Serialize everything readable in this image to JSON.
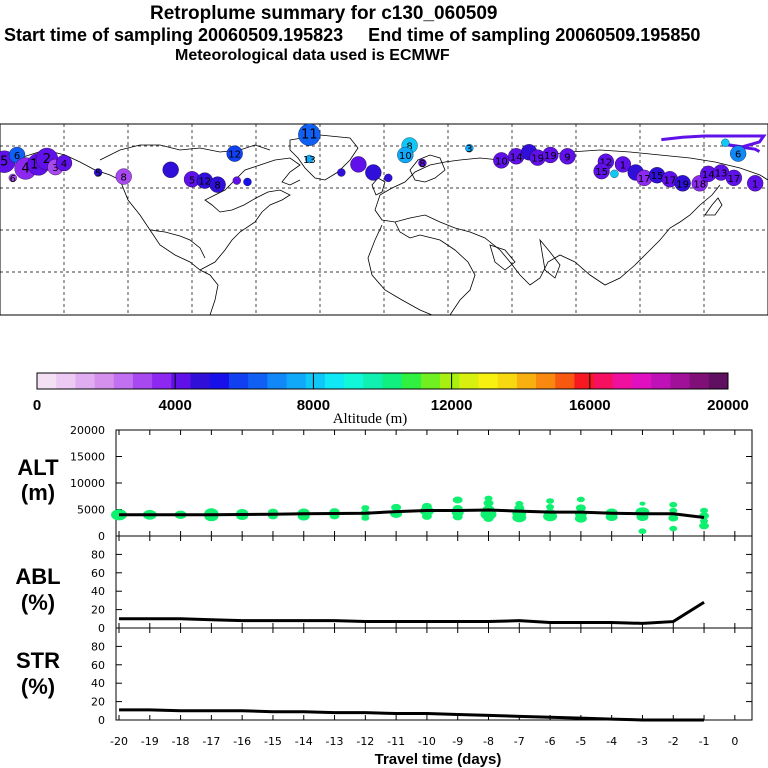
{
  "titles": {
    "line1": "Retroplume summary for c130_060509",
    "line2": "Start time of sampling 20060509.195823     End time of sampling 20060509.195850",
    "line3": "Meteorological data used is ECMWF"
  },
  "colorbar": {
    "colors": [
      "#f4e0f4",
      "#eccaf4",
      "#e0aef0",
      "#d490ec",
      "#c070f0",
      "#a848f0",
      "#8c28f0",
      "#6010e8",
      "#3010d8",
      "#1810e8",
      "#1040f0",
      "#1060f4",
      "#1088f8",
      "#10a8f8",
      "#10c8f8",
      "#10e8f8",
      "#10f8d8",
      "#10f0b0",
      "#10f080",
      "#30f040",
      "#70f020",
      "#a8f010",
      "#d8f010",
      "#f8f010",
      "#f8d810",
      "#f8b010",
      "#f88810",
      "#f85810",
      "#f81820",
      "#f81060",
      "#f010a0",
      "#e010c0",
      "#c010b8",
      "#a01098",
      "#801078",
      "#601060"
    ],
    "tick_labels": [
      "0",
      "4000",
      "8000",
      "12000",
      "16000",
      "20000"
    ],
    "label": "Altitude (m)"
  },
  "map": {
    "markers": [
      {
        "lon": -178,
        "lat": 68,
        "label": "5",
        "color": "#6010e8",
        "size": 3
      },
      {
        "lon": -172,
        "lat": 73,
        "label": "6",
        "color": "#1060f4",
        "size": 2
      },
      {
        "lon": -168,
        "lat": 63,
        "label": "4",
        "color": "#8c28f0",
        "size": 3
      },
      {
        "lon": -162,
        "lat": 66,
        "label": "17",
        "color": "#6010e8",
        "size": 3
      },
      {
        "lon": -158,
        "lat": 70,
        "label": "2",
        "color": "#6010e8",
        "size": 3
      },
      {
        "lon": -154,
        "lat": 64,
        "label": "3",
        "color": "#a848f0",
        "size": 2
      },
      {
        "lon": -150,
        "lat": 67,
        "label": "4",
        "color": "#6010e8",
        "size": 2
      },
      {
        "lon": -174,
        "lat": 56,
        "label": "6",
        "color": "#a848f0",
        "size": 1
      },
      {
        "lon": -134,
        "lat": 60,
        "label": "5",
        "color": "#3010d8",
        "size": 1
      },
      {
        "lon": -122,
        "lat": 57,
        "label": "8",
        "color": "#a848f0",
        "size": 2
      },
      {
        "lon": -100,
        "lat": 62,
        "label": "",
        "color": "#3010d8",
        "size": 2
      },
      {
        "lon": -90,
        "lat": 55,
        "label": "5",
        "color": "#6010e8",
        "size": 2
      },
      {
        "lon": -84,
        "lat": 54,
        "label": "12",
        "color": "#3010d8",
        "size": 2
      },
      {
        "lon": -78,
        "lat": 51,
        "label": "8",
        "color": "#3010d8",
        "size": 2
      },
      {
        "lon": -69,
        "lat": 54,
        "label": "",
        "color": "#6010e8",
        "size": 1
      },
      {
        "lon": -64,
        "lat": 53,
        "label": "",
        "color": "#1810e8",
        "size": 1
      },
      {
        "lon": -35,
        "lat": 88,
        "label": "11",
        "color": "#1060f4",
        "size": 3
      },
      {
        "lon": -70,
        "lat": 74,
        "label": "12",
        "color": "#1040f0",
        "size": 2
      },
      {
        "lon": -35,
        "lat": 70,
        "label": "13",
        "color": "#10a8f8",
        "size": 1
      },
      {
        "lon": -12,
        "lat": 66,
        "label": "",
        "color": "#6010e8",
        "size": 2
      },
      {
        "lon": -5,
        "lat": 60,
        "label": "",
        "color": "#3010d8",
        "size": 2
      },
      {
        "lon": -20,
        "lat": 60,
        "label": "",
        "color": "#3010d8",
        "size": 1
      },
      {
        "lon": 2,
        "lat": 56,
        "label": "",
        "color": "#3010d8",
        "size": 1
      },
      {
        "lon": 12,
        "lat": 80,
        "label": "8",
        "color": "#10c8f8",
        "size": 2
      },
      {
        "lon": 10,
        "lat": 73,
        "label": "10",
        "color": "#10a8f8",
        "size": 2
      },
      {
        "lon": 18,
        "lat": 67,
        "label": "8",
        "color": "#6010e8",
        "size": 1
      },
      {
        "lon": 40,
        "lat": 78,
        "label": "3",
        "color": "#10a8f8",
        "size": 1
      },
      {
        "lon": 55,
        "lat": 69,
        "label": "10",
        "color": "#6010e8",
        "size": 2
      },
      {
        "lon": 62,
        "lat": 72,
        "label": "14",
        "color": "#6010e8",
        "size": 2
      },
      {
        "lon": 68,
        "lat": 75,
        "label": "",
        "color": "#3010d8",
        "size": 2
      },
      {
        "lon": 72,
        "lat": 71,
        "label": "19",
        "color": "#6010e8",
        "size": 2
      },
      {
        "lon": 78,
        "lat": 73,
        "label": "19",
        "color": "#6010e8",
        "size": 2
      },
      {
        "lon": 86,
        "lat": 72,
        "label": "9",
        "color": "#6010e8",
        "size": 2
      },
      {
        "lon": 104,
        "lat": 68,
        "label": "12",
        "color": "#6010e8",
        "size": 2
      },
      {
        "lon": 102,
        "lat": 61,
        "label": "15",
        "color": "#6010e8",
        "size": 2
      },
      {
        "lon": 108,
        "lat": 59,
        "label": "",
        "color": "#10c8f8",
        "size": 1
      },
      {
        "lon": 112,
        "lat": 66,
        "label": "1",
        "color": "#6010e8",
        "size": 2
      },
      {
        "lon": 118,
        "lat": 60,
        "label": "",
        "color": "#3010d8",
        "size": 2
      },
      {
        "lon": 122,
        "lat": 56,
        "label": "17",
        "color": "#8c28f0",
        "size": 2
      },
      {
        "lon": 128,
        "lat": 58,
        "label": "15",
        "color": "#3010d8",
        "size": 2
      },
      {
        "lon": 134,
        "lat": 55,
        "label": "17",
        "color": "#6010e8",
        "size": 2
      },
      {
        "lon": 140,
        "lat": 52,
        "label": "19",
        "color": "#3010d8",
        "size": 2
      },
      {
        "lon": 148,
        "lat": 52,
        "label": "18",
        "color": "#8c28f0",
        "size": 2
      },
      {
        "lon": 152,
        "lat": 59,
        "label": "14",
        "color": "#6010e8",
        "size": 2
      },
      {
        "lon": 158,
        "lat": 60,
        "label": "13",
        "color": "#6010e8",
        "size": 2
      },
      {
        "lon": 164,
        "lat": 56,
        "label": "17",
        "color": "#6010e8",
        "size": 2
      },
      {
        "lon": 174,
        "lat": 52,
        "label": "1",
        "color": "#6010e8",
        "size": 2
      },
      {
        "lon": 166,
        "lat": 74,
        "label": "6",
        "color": "#1088f8",
        "size": 2
      },
      {
        "lon": 160,
        "lat": 82,
        "label": "",
        "color": "#10c8f8",
        "size": 1
      }
    ],
    "track": [
      [
        130,
        90
      ],
      [
        140,
        92
      ],
      [
        150,
        93
      ],
      [
        160,
        93
      ],
      [
        170,
        93
      ],
      [
        178,
        93
      ],
      [
        176,
        88
      ],
      [
        168,
        84
      ],
      [
        160,
        86
      ],
      [
        166,
        84
      ],
      [
        174,
        82
      ],
      [
        176,
        80
      ]
    ]
  },
  "alt_panel": {
    "ylabel": [
      "ALT",
      "(m)"
    ],
    "yticks": [
      "20000",
      "15000",
      "10000",
      "5000",
      "0"
    ],
    "ymax": 20000,
    "mean": [
      [
        -20,
        4000
      ],
      [
        -19,
        4000
      ],
      [
        -18,
        4000
      ],
      [
        -17,
        4000
      ],
      [
        -16,
        4050
      ],
      [
        -15,
        4100
      ],
      [
        -14,
        4200
      ],
      [
        -13,
        4250
      ],
      [
        -12,
        4300
      ],
      [
        -11,
        4600
      ],
      [
        -10,
        4800
      ],
      [
        -9,
        4800
      ],
      [
        -8,
        4900
      ],
      [
        -7,
        4700
      ],
      [
        -6,
        4500
      ],
      [
        -5,
        4500
      ],
      [
        -4,
        4300
      ],
      [
        -3,
        4200
      ],
      [
        -2,
        4200
      ],
      [
        -1,
        3500
      ]
    ],
    "points": [
      [
        -20,
        4000,
        8
      ],
      [
        -19,
        4000,
        7
      ],
      [
        -18,
        4000,
        6
      ],
      [
        -17,
        3700,
        7
      ],
      [
        -17,
        4300,
        7
      ],
      [
        -16,
        3800,
        6
      ],
      [
        -16,
        4300,
        6
      ],
      [
        -15,
        3800,
        5
      ],
      [
        -15,
        4500,
        5
      ],
      [
        -14,
        3700,
        6
      ],
      [
        -14,
        4400,
        6
      ],
      [
        -13,
        3800,
        5
      ],
      [
        -13,
        4600,
        5
      ],
      [
        -12,
        3400,
        4
      ],
      [
        -12,
        4300,
        5
      ],
      [
        -12,
        5300,
        4
      ],
      [
        -11,
        4200,
        6
      ],
      [
        -11,
        5400,
        5
      ],
      [
        -10,
        3700,
        5
      ],
      [
        -10,
        4700,
        7
      ],
      [
        -10,
        5600,
        5
      ],
      [
        -9,
        3600,
        5
      ],
      [
        -9,
        4400,
        6
      ],
      [
        -9,
        5200,
        5
      ],
      [
        -9,
        6800,
        5
      ],
      [
        -8,
        3300,
        5
      ],
      [
        -8,
        4100,
        8
      ],
      [
        -8,
        5000,
        6
      ],
      [
        -8,
        6200,
        5
      ],
      [
        -8,
        7100,
        4
      ],
      [
        -7,
        3500,
        7
      ],
      [
        -7,
        4300,
        7
      ],
      [
        -7,
        5300,
        5
      ],
      [
        -7,
        6100,
        4
      ],
      [
        -6,
        3700,
        7
      ],
      [
        -6,
        4300,
        6
      ],
      [
        -6,
        5500,
        4
      ],
      [
        -6,
        6600,
        4
      ],
      [
        -5,
        3300,
        6
      ],
      [
        -5,
        4200,
        6
      ],
      [
        -5,
        5300,
        5
      ],
      [
        -5,
        6900,
        4
      ],
      [
        -4,
        3600,
        6
      ],
      [
        -4,
        4400,
        6
      ],
      [
        -3,
        900,
        4
      ],
      [
        -3,
        3600,
        6
      ],
      [
        -3,
        4500,
        7
      ],
      [
        -3,
        6100,
        3
      ],
      [
        -2,
        1400,
        4
      ],
      [
        -2,
        3400,
        5
      ],
      [
        -2,
        4800,
        4
      ],
      [
        -2,
        5900,
        4
      ],
      [
        -1,
        1900,
        5
      ],
      [
        -1,
        2800,
        4
      ],
      [
        -1,
        3800,
        5
      ],
      [
        -1,
        4800,
        4
      ]
    ]
  },
  "abl_panel": {
    "ylabel": [
      "ABL",
      "(%)"
    ],
    "yticks": [
      "80",
      "60",
      "40",
      "20",
      "0"
    ],
    "ymax": 100,
    "mean": [
      [
        -20,
        10
      ],
      [
        -19,
        10
      ],
      [
        -18,
        10
      ],
      [
        -17,
        9
      ],
      [
        -16,
        8
      ],
      [
        -15,
        8
      ],
      [
        -14,
        8
      ],
      [
        -13,
        8
      ],
      [
        -12,
        7
      ],
      [
        -11,
        7
      ],
      [
        -10,
        7
      ],
      [
        -9,
        7
      ],
      [
        -8,
        7
      ],
      [
        -7,
        8
      ],
      [
        -6,
        6
      ],
      [
        -5,
        6
      ],
      [
        -4,
        6
      ],
      [
        -3,
        5
      ],
      [
        -2,
        7
      ],
      [
        -1,
        28
      ]
    ]
  },
  "str_panel": {
    "ylabel": [
      "STR",
      "(%)"
    ],
    "yticks": [
      "80",
      "60",
      "40",
      "20",
      "0"
    ],
    "ymax": 100,
    "mean": [
      [
        -20,
        11
      ],
      [
        -19,
        11
      ],
      [
        -18,
        10
      ],
      [
        -17,
        10
      ],
      [
        -16,
        10
      ],
      [
        -15,
        9
      ],
      [
        -14,
        9
      ],
      [
        -13,
        8
      ],
      [
        -12,
        8
      ],
      [
        -11,
        7
      ],
      [
        -10,
        7
      ],
      [
        -9,
        6
      ],
      [
        -8,
        5
      ],
      [
        -7,
        4
      ],
      [
        -6,
        3
      ],
      [
        -5,
        2
      ],
      [
        -4,
        1
      ],
      [
        -3,
        0
      ],
      [
        -2,
        0
      ],
      [
        -1,
        0
      ]
    ]
  },
  "xaxis": {
    "ticks": [
      "-20",
      "-19",
      "-18",
      "-17",
      "-16",
      "-15",
      "-14",
      "-13",
      "-12",
      "-11",
      "-10",
      "-9",
      "-8",
      "-7",
      "-6",
      "-5",
      "-4",
      "-3",
      "-2",
      "-1",
      "0"
    ],
    "label": "Travel time (days)"
  }
}
